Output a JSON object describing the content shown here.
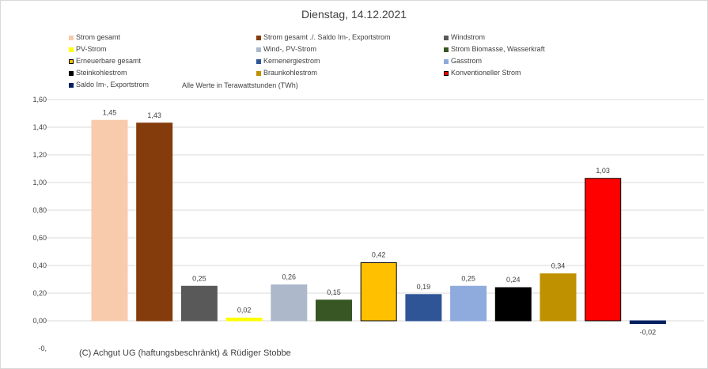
{
  "chart_data": {
    "type": "bar",
    "title": "Dienstag, 14.12.2021",
    "note": "Alle Werte in Terawattstunden (TWh)",
    "copyright": "(C) Achgut UG (haftungsbeschränkt) & Rüdiger Stobbe",
    "ylim": [
      0,
      1.6
    ],
    "yticks": [
      "1,60",
      "1,40",
      "1,20",
      "1,00",
      "0,80",
      "0,60",
      "0,40",
      "0,20",
      "0,00",
      "-0,"
    ],
    "grid": true,
    "legend_position": "top",
    "series": [
      {
        "name": "Strom gesamt",
        "value": 1.45,
        "label": "1,45",
        "color": "#f8cbad",
        "border": "#f8cbad"
      },
      {
        "name": "Strom gesamt ./. Saldo Im-, Exportstrom",
        "value": 1.43,
        "label": "1,43",
        "color": "#843c0c",
        "border": "#843c0c"
      },
      {
        "name": "Windstrom",
        "value": 0.25,
        "label": "0,25",
        "color": "#595959",
        "border": "#595959"
      },
      {
        "name": "PV-Strom",
        "value": 0.02,
        "label": "0,02",
        "color": "#ffff00",
        "border": "#ffff00"
      },
      {
        "name": "Wind-, PV-Strom",
        "value": 0.26,
        "label": "0,26",
        "color": "#adb9ca",
        "border": "#adb9ca"
      },
      {
        "name": "Strom Biomasse, Wasserkraft",
        "value": 0.15,
        "label": "0,15",
        "color": "#375623",
        "border": "#375623"
      },
      {
        "name": "Erneuerbare gesamt",
        "value": 0.42,
        "label": "0,42",
        "color": "#ffc000",
        "border": "#000000"
      },
      {
        "name": "Kernenergiestrom",
        "value": 0.19,
        "label": "0,19",
        "color": "#2f5597",
        "border": "#2f5597"
      },
      {
        "name": "Gasstrom",
        "value": 0.25,
        "label": "0,25",
        "color": "#8faadc",
        "border": "#8faadc"
      },
      {
        "name": "Steinkohlestrom",
        "value": 0.24,
        "label": "0,24",
        "color": "#000000",
        "border": "#000000"
      },
      {
        "name": "Braunkohlestrom",
        "value": 0.34,
        "label": "0,34",
        "color": "#bf9000",
        "border": "#bf9000"
      },
      {
        "name": "Konventioneller Strom",
        "value": 1.03,
        "label": "1,03",
        "color": "#ff0000",
        "border": "#000000"
      },
      {
        "name": "Saldo Im-, Exportstrom",
        "value": -0.02,
        "label": "-0,02",
        "color": "#002060",
        "border": "#002060"
      }
    ]
  }
}
